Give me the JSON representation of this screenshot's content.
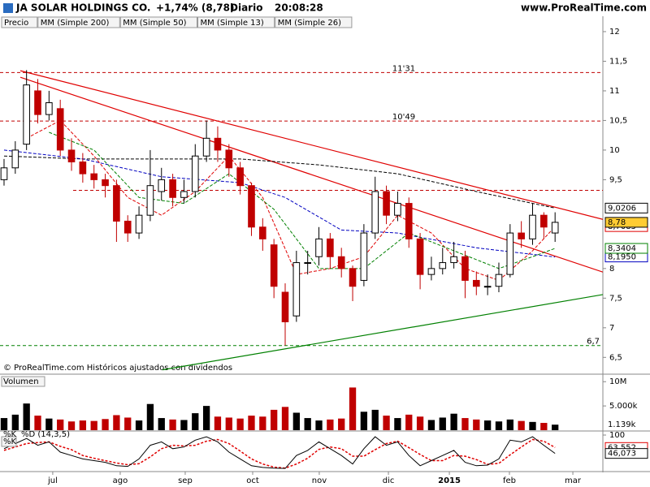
{
  "header": {
    "title": "JA SOLAR HOLDINGS CO.",
    "change": "+1,74% (8,78)",
    "period": "Diario",
    "time": "20:08:28",
    "site": "www.ProRealTime.com",
    "footer": "© ProRealTime.com Históricos ajustados con dividendos"
  },
  "chart_data": [
    {
      "type": "candlestick",
      "legend_first": "Precio",
      "up_color": "#000000",
      "down_color": "#c00000",
      "open": [
        9.5,
        9.7,
        10.1,
        11.0,
        10.6,
        10.7,
        10.0,
        9.8,
        9.6,
        9.5,
        9.4,
        8.8,
        8.6,
        8.9,
        9.3,
        9.5,
        9.2,
        9.3,
        9.9,
        10.2,
        10.0,
        9.7,
        9.4,
        8.7,
        8.4,
        7.6,
        7.2,
        8.1,
        8.2,
        8.5,
        8.2,
        8.0,
        7.8,
        8.6,
        9.3,
        8.9,
        9.1,
        8.5,
        7.9,
        8.0,
        8.1,
        8.2,
        7.8,
        7.7,
        7.7,
        7.9,
        8.6,
        8.5,
        8.9,
        8.6
      ],
      "high": [
        9.85,
        10.15,
        11.35,
        11.2,
        11.0,
        10.85,
        10.2,
        9.95,
        9.75,
        9.6,
        9.5,
        8.9,
        9.05,
        10.0,
        9.7,
        9.6,
        9.5,
        10.1,
        10.5,
        10.4,
        10.1,
        9.8,
        9.45,
        8.85,
        8.5,
        7.75,
        8.3,
        8.3,
        8.7,
        8.6,
        8.35,
        8.05,
        8.75,
        9.55,
        9.4,
        9.3,
        9.2,
        8.6,
        8.2,
        8.35,
        8.45,
        8.3,
        7.95,
        7.9,
        8.1,
        8.75,
        8.8,
        9.1,
        8.95,
        8.95
      ],
      "low": [
        9.4,
        9.6,
        10.0,
        10.45,
        10.5,
        9.9,
        9.65,
        9.45,
        9.35,
        9.2,
        8.45,
        8.45,
        8.5,
        8.8,
        9.15,
        9.05,
        9.1,
        9.2,
        9.8,
        9.8,
        9.55,
        9.25,
        8.55,
        8.3,
        7.5,
        6.7,
        7.1,
        7.9,
        8.05,
        8.0,
        7.85,
        7.45,
        7.7,
        8.5,
        8.75,
        8.8,
        8.35,
        7.65,
        7.8,
        7.9,
        8.0,
        7.5,
        7.55,
        7.55,
        7.6,
        7.85,
        8.35,
        8.4,
        8.5,
        8.45
      ],
      "close": [
        9.7,
        10.0,
        11.1,
        10.6,
        10.8,
        10.0,
        9.8,
        9.6,
        9.5,
        9.4,
        8.8,
        8.6,
        8.9,
        9.4,
        9.5,
        9.2,
        9.3,
        9.9,
        10.2,
        10.0,
        9.7,
        9.4,
        8.7,
        8.5,
        7.7,
        7.1,
        8.1,
        8.1,
        8.5,
        8.2,
        8.0,
        7.7,
        8.6,
        9.3,
        8.9,
        9.1,
        8.5,
        7.9,
        8.0,
        8.1,
        8.2,
        7.8,
        7.7,
        7.7,
        7.9,
        8.6,
        8.5,
        8.9,
        8.7,
        8.78
      ],
      "last_close_label": "8,78",
      "xlim": [
        -0.36,
        53.25
      ],
      "ylim": [
        6.23,
        12.26
      ],
      "yticks": [
        12,
        {
          "value": 11.5,
          "label": "11,5"
        },
        11,
        {
          "value": 10.5,
          "label": "10,5"
        },
        10,
        {
          "value": 9.5,
          "label": "9,5"
        },
        8,
        {
          "value": 7.5,
          "label": "7,5"
        },
        7,
        {
          "value": 6.5,
          "label": "6,5"
        }
      ],
      "xticks": [
        {
          "value": 4.33,
          "label": "jul"
        },
        {
          "value": 10.33,
          "label": "ago"
        },
        {
          "value": 16.11,
          "label": "sep"
        },
        {
          "value": 22.11,
          "label": "oct"
        },
        {
          "value": 28.03,
          "label": "nov"
        },
        {
          "value": 34.18,
          "label": "dic"
        },
        {
          "value": 39.6,
          "label": "2015"
        },
        {
          "value": 44.94,
          "label": "feb"
        },
        {
          "value": 50.58,
          "label": "mar"
        }
      ],
      "series": [
        {
          "name": "MM (Simple 200)",
          "color": "#000000",
          "x": [
            0,
            7,
            14,
            21,
            28,
            35,
            42,
            49
          ],
          "values": [
            9.9,
            9.85,
            9.85,
            9.85,
            9.75,
            9.6,
            9.3,
            9.0206
          ],
          "last_label": "9,0206"
        },
        {
          "name": "MM (Simple 50)",
          "color": "#0000c0",
          "x": [
            0,
            7,
            14,
            21,
            25,
            30,
            35,
            42,
            49
          ],
          "values": [
            10.0,
            9.85,
            9.55,
            9.45,
            9.2,
            8.65,
            8.6,
            8.35,
            8.195
          ],
          "last_label": "8,1950"
        },
        {
          "name": "MM (Simple 13)",
          "color": "#e00000",
          "x": [
            2,
            5,
            8,
            11,
            14,
            17,
            20,
            23,
            26,
            29,
            32,
            35,
            38,
            41,
            44,
            47,
            49
          ],
          "values": [
            10.2,
            10.5,
            9.9,
            9.2,
            8.9,
            9.3,
            9.9,
            9.2,
            7.9,
            8.0,
            8.2,
            8.9,
            8.6,
            8.0,
            7.8,
            8.3,
            8.7085
          ],
          "last_label": "8,7085"
        },
        {
          "name": "MM (Simple 26)",
          "color": "#008000",
          "x": [
            4,
            8,
            12,
            16,
            20,
            24,
            28,
            32,
            36,
            40,
            44,
            47,
            49
          ],
          "values": [
            10.3,
            10.0,
            9.2,
            9.1,
            9.6,
            9.0,
            8.0,
            8.0,
            8.6,
            8.3,
            8.0,
            8.2,
            8.3404
          ],
          "last_label": "8,3404"
        }
      ],
      "levels": [
        {
          "value": 11.31,
          "label": "11'31",
          "color": "#c00000"
        },
        {
          "value": 10.49,
          "label": "10'49",
          "color": "#c00000"
        },
        {
          "value": 6.7,
          "label": "6,7",
          "color": "#008000"
        }
      ],
      "plain_levels": [
        9.32
      ],
      "trendlines": [
        {
          "color": "#e00000",
          "x": [
            1.45,
            53.25
          ],
          "values": [
            11.34,
            8.83
          ]
        },
        {
          "color": "#e00000",
          "x": [
            1.45,
            53.25
          ],
          "values": [
            11.23,
            7.94
          ]
        },
        {
          "color": "#008000",
          "x": [
            14.09,
            53.25
          ],
          "values": [
            6.29,
            7.56
          ]
        }
      ]
    },
    {
      "type": "bar",
      "title": "Volumen",
      "xlim": [
        -0.36,
        53.25
      ],
      "ylim": [
        0,
        11380
      ],
      "values": [
        2500,
        3200,
        5500,
        3000,
        2400,
        2200,
        1800,
        2000,
        1900,
        2300,
        3100,
        2600,
        2000,
        5400,
        2500,
        2200,
        2100,
        3500,
        5000,
        2800,
        2600,
        2400,
        3000,
        2800,
        4200,
        4800,
        3600,
        2500,
        2000,
        2200,
        2400,
        8800,
        3800,
        4200,
        3000,
        2500,
        3200,
        2800,
        2100,
        2600,
        3400,
        2500,
        2200,
        2000,
        1800,
        2200,
        1900,
        1700,
        1500,
        1139
      ],
      "last_label": "1.139k",
      "yticks": [
        {
          "value": 10000,
          "label": "10M"
        },
        {
          "value": 5000,
          "label": "5.000k"
        }
      ]
    },
    {
      "type": "line",
      "title": "%K",
      "xlim": [
        -0.36,
        53.25
      ],
      "ylim": [
        0,
        100
      ],
      "yticks": [
        100
      ],
      "series": [
        {
          "name": "%D (14,3,5)",
          "color": "#e00000",
          "dashed": true,
          "values": [
            55,
            65,
            75,
            78,
            80,
            67,
            57,
            40,
            32,
            25,
            18,
            13,
            16,
            36,
            60,
            70,
            68,
            70,
            82,
            87,
            75,
            53,
            30,
            15,
            6,
            3,
            15,
            32,
            58,
            65,
            60,
            38,
            38,
            57,
            75,
            82,
            63,
            43,
            25,
            25,
            40,
            38,
            28,
            14,
            17,
            42,
            65,
            87,
            82,
            63.552
          ],
          "last_label": "63,552"
        },
        {
          "name": "%K",
          "color": "#000000",
          "values": [
            60,
            75,
            90,
            70,
            80,
            50,
            40,
            30,
            25,
            20,
            10,
            8,
            30,
            70,
            80,
            60,
            65,
            85,
            95,
            80,
            50,
            30,
            10,
            5,
            3,
            2,
            40,
            55,
            80,
            60,
            40,
            15,
            60,
            95,
            70,
            80,
            40,
            10,
            25,
            40,
            55,
            20,
            10,
            12,
            30,
            85,
            80,
            95,
            70,
            46.073
          ],
          "last_label": "46,073"
        }
      ]
    }
  ]
}
